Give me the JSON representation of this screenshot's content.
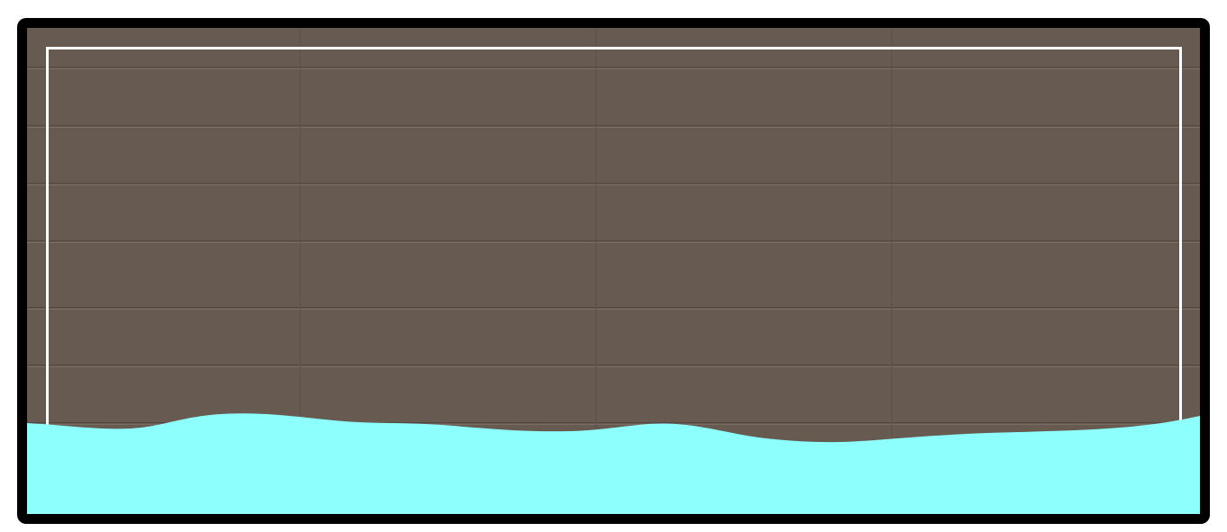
{
  "scene": {
    "background_color": "#675a50",
    "frame_color": "#000000",
    "inner_border_color": "#ffffff",
    "water_color": "#8dfffd",
    "water_level_fraction": 0.19
  },
  "icons": [
    "wood-plank-wall",
    "water-surface"
  ]
}
